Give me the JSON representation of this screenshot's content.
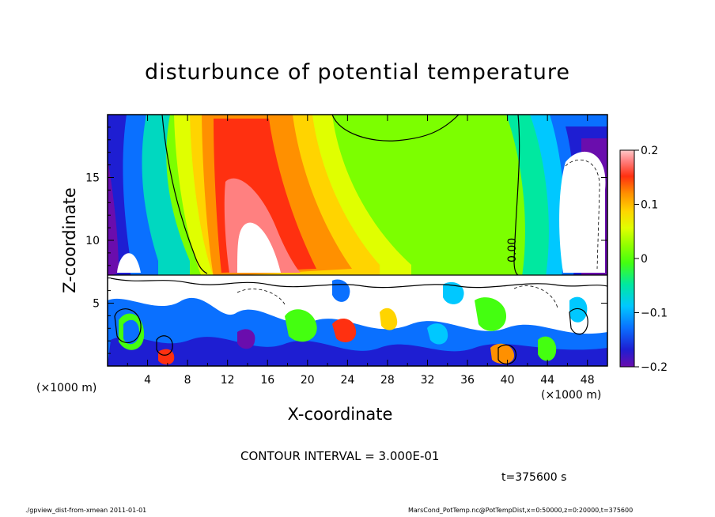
{
  "chart_data": {
    "type": "heatmap",
    "title": "disturbunce of potential temperature",
    "xlabel": "X-coordinate",
    "ylabel": "Z-coordinate",
    "x_unit": "(×1000 m)",
    "x_unit_right": "(×1000 m)",
    "xlim": [
      0,
      50
    ],
    "ylim": [
      0,
      20
    ],
    "x_ticks": [
      4,
      8,
      12,
      16,
      20,
      24,
      28,
      32,
      36,
      40,
      44,
      48
    ],
    "x_tick_labels": [
      "4",
      "8",
      "12",
      "16",
      "20",
      "24",
      "28",
      "32",
      "36",
      "40",
      "44",
      "48"
    ],
    "y_ticks": [
      5,
      10,
      15
    ],
    "y_tick_labels": [
      "5",
      "10",
      "15"
    ],
    "colorbar": {
      "range": [
        -0.2,
        0.2
      ],
      "ticks": [
        0.2,
        0.1,
        0,
        -0.1,
        -0.2
      ],
      "tick_labels": [
        "0.2",
        "0.1",
        "0",
        "−0.1",
        "−0.2"
      ]
    },
    "contour_label": "0.00",
    "contour_interval": "CONTOUR INTERVAL = 3.000E-01",
    "time": "t=375600 s",
    "grid": false
  },
  "footer": {
    "left": "./gpview_dist-from-xmean 2011-01-01",
    "right": "MarsCond_PotTemp.nc@PotTempDist,x=0:50000,z=0:20000,t=375600"
  },
  "colors": {
    "background": "#ffffff",
    "axis": "#000000",
    "scale": [
      "#6a0dad",
      "#1e1ed2",
      "#0a70ff",
      "#00c8ff",
      "#00e8a0",
      "#44ff10",
      "#90ff00",
      "#e0ff00",
      "#ffd400",
      "#ff9000",
      "#ff3010",
      "#ff8080",
      "#ffc8c8"
    ]
  }
}
